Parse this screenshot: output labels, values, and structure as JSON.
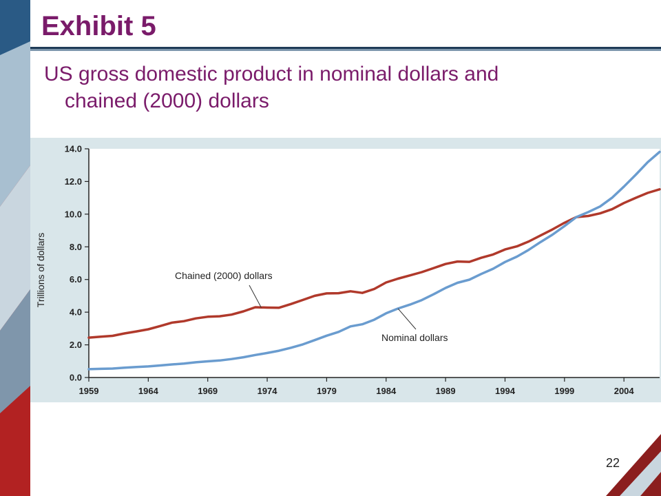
{
  "slide": {
    "title": "Exhibit 5",
    "subtitle_line1": "US gross domestic product in nominal dollars and",
    "subtitle_line2": "chained (2000) dollars",
    "page_number": "22"
  },
  "colors": {
    "title": "#7a1b6a",
    "chart_bg": "#d9e6ea",
    "nominal": "#6a9ccf",
    "chained": "#b0392b"
  },
  "chart_data": {
    "type": "line",
    "title": "",
    "xlabel": "",
    "ylabel": "Trillions of dollars",
    "xlim": [
      1959,
      2007
    ],
    "ylim": [
      0,
      14
    ],
    "x_ticks": [
      "1959",
      "1964",
      "1969",
      "1974",
      "1979",
      "1984",
      "1989",
      "1994",
      "1999",
      "2004"
    ],
    "y_ticks": [
      "0.0",
      "2.0",
      "4.0",
      "6.0",
      "8.0",
      "10.0",
      "12.0",
      "14.0"
    ],
    "grid": false,
    "x": [
      1959,
      1960,
      1961,
      1962,
      1963,
      1964,
      1965,
      1966,
      1967,
      1968,
      1969,
      1970,
      1971,
      1972,
      1973,
      1974,
      1975,
      1976,
      1977,
      1978,
      1979,
      1980,
      1981,
      1982,
      1983,
      1984,
      1985,
      1986,
      1987,
      1988,
      1989,
      1990,
      1991,
      1992,
      1993,
      1994,
      1995,
      1996,
      1997,
      1998,
      1999,
      2000,
      2001,
      2002,
      2003,
      2004,
      2005,
      2006,
      2007
    ],
    "series": [
      {
        "name": "Chained (2000) dollars",
        "values": [
          2.44,
          2.5,
          2.55,
          2.7,
          2.82,
          2.95,
          3.15,
          3.36,
          3.45,
          3.62,
          3.72,
          3.75,
          3.85,
          4.05,
          4.3,
          4.28,
          4.27,
          4.5,
          4.75,
          5.0,
          5.15,
          5.16,
          5.28,
          5.18,
          5.42,
          5.82,
          6.05,
          6.25,
          6.45,
          6.7,
          6.95,
          7.1,
          7.08,
          7.33,
          7.53,
          7.84,
          8.03,
          8.33,
          8.7,
          9.07,
          9.47,
          9.82,
          9.89,
          10.05,
          10.3,
          10.68,
          11.0,
          11.3,
          11.52
        ]
      },
      {
        "name": "Nominal dollars",
        "values": [
          0.51,
          0.53,
          0.55,
          0.6,
          0.64,
          0.68,
          0.74,
          0.8,
          0.85,
          0.93,
          0.99,
          1.04,
          1.13,
          1.24,
          1.38,
          1.5,
          1.64,
          1.82,
          2.03,
          2.29,
          2.56,
          2.79,
          3.13,
          3.26,
          3.54,
          3.93,
          4.22,
          4.46,
          4.74,
          5.1,
          5.48,
          5.8,
          5.99,
          6.34,
          6.66,
          7.07,
          7.4,
          7.82,
          8.3,
          8.75,
          9.27,
          9.82,
          10.13,
          10.47,
          11.0,
          11.69,
          12.42,
          13.18,
          13.81
        ]
      }
    ],
    "annotations": [
      {
        "text": "Chained (2000) dollars",
        "series": 0,
        "points_to_x": 1973.5
      },
      {
        "text": "Nominal dollars",
        "series": 1,
        "points_to_x": 1985
      }
    ]
  }
}
